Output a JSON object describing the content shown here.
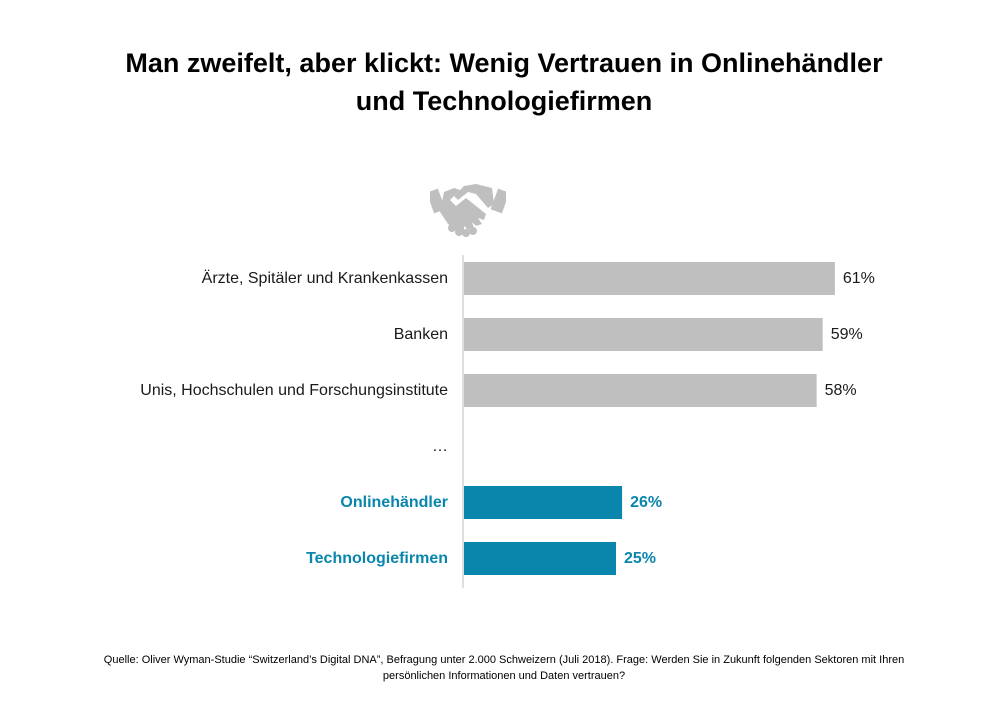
{
  "title": {
    "line1": "Man zweifelt, aber klickt: Wenig Vertrauen in Onlinehändler",
    "line2": "und Technologiefirmen"
  },
  "icon": "handshake-icon",
  "chart_data": {
    "type": "bar",
    "orientation": "horizontal",
    "categories": [
      "Ärzte, Spitäler und Krankenkassen",
      "Banken",
      "Unis, Hochschulen und Forschungsinstitute",
      "…",
      "Onlinehändler",
      "Technologiefirmen"
    ],
    "values": [
      61,
      59,
      58,
      null,
      26,
      25
    ],
    "value_labels": [
      "61%",
      "59%",
      "58%",
      "",
      "26%",
      "25%"
    ],
    "highlighted": [
      false,
      false,
      false,
      false,
      true,
      true
    ],
    "colors": {
      "default": "#bfbfbf",
      "highlight": "#0a86ad",
      "axis": "#bfbfbf"
    },
    "xlim": [
      0,
      100
    ],
    "grid": false,
    "legend": "none"
  },
  "source": {
    "line1": "Quelle: Oliver Wyman-Studie “Switzerland’s Digital DNA”, Befragung unter 2.000 Schweizern (Juli 2018). Frage: Werden Sie in Zukunft folgenden Sektoren mit Ihren",
    "line2": "persönlichen Informationen und Daten vertrauen?"
  }
}
